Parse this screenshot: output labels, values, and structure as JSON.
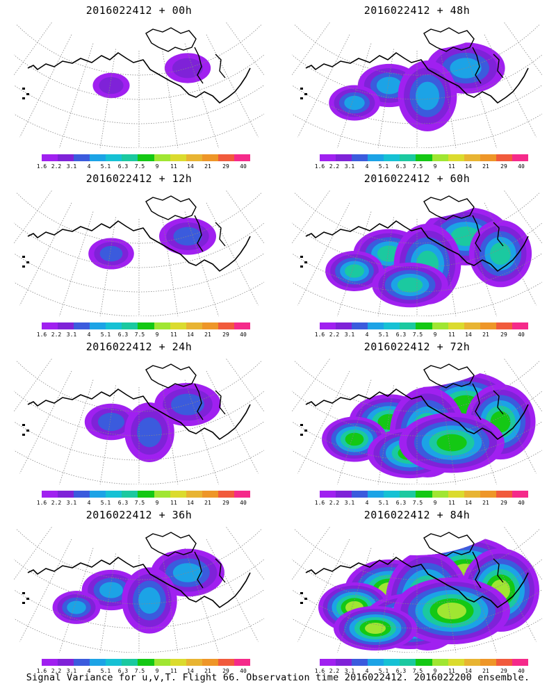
{
  "panels": [
    {
      "title": "2016022412 + 00h",
      "level": 0.1
    },
    {
      "title": "2016022412 + 48h",
      "level": 0.55
    },
    {
      "title": "2016022412 + 12h",
      "level": 0.25
    },
    {
      "title": "2016022412 + 60h",
      "level": 0.7
    },
    {
      "title": "2016022412 + 24h",
      "level": 0.38
    },
    {
      "title": "2016022412 + 72h",
      "level": 0.85
    },
    {
      "title": "2016022412 + 36h",
      "level": 0.48
    },
    {
      "title": "2016022412 + 84h",
      "level": 1.0
    }
  ],
  "colorbar": {
    "ticks": [
      "1.6",
      "2.2",
      "3.1",
      "4",
      "5.1",
      "6.3",
      "7.5",
      "9",
      "11",
      "14",
      "21",
      "29",
      "40"
    ],
    "colors": [
      "#a020f0",
      "#7f22d8",
      "#3b5bdd",
      "#1ca3e6",
      "#16c1d4",
      "#1bc9a0",
      "#14c814",
      "#a0e632",
      "#dbdb2e",
      "#e8b432",
      "#ee9628",
      "#f15a3c",
      "#f52a8a"
    ]
  },
  "footer": "Signal Variance for u,v,T. Flight 66. Observation time 2016022412. 2016022200 ensemble."
}
